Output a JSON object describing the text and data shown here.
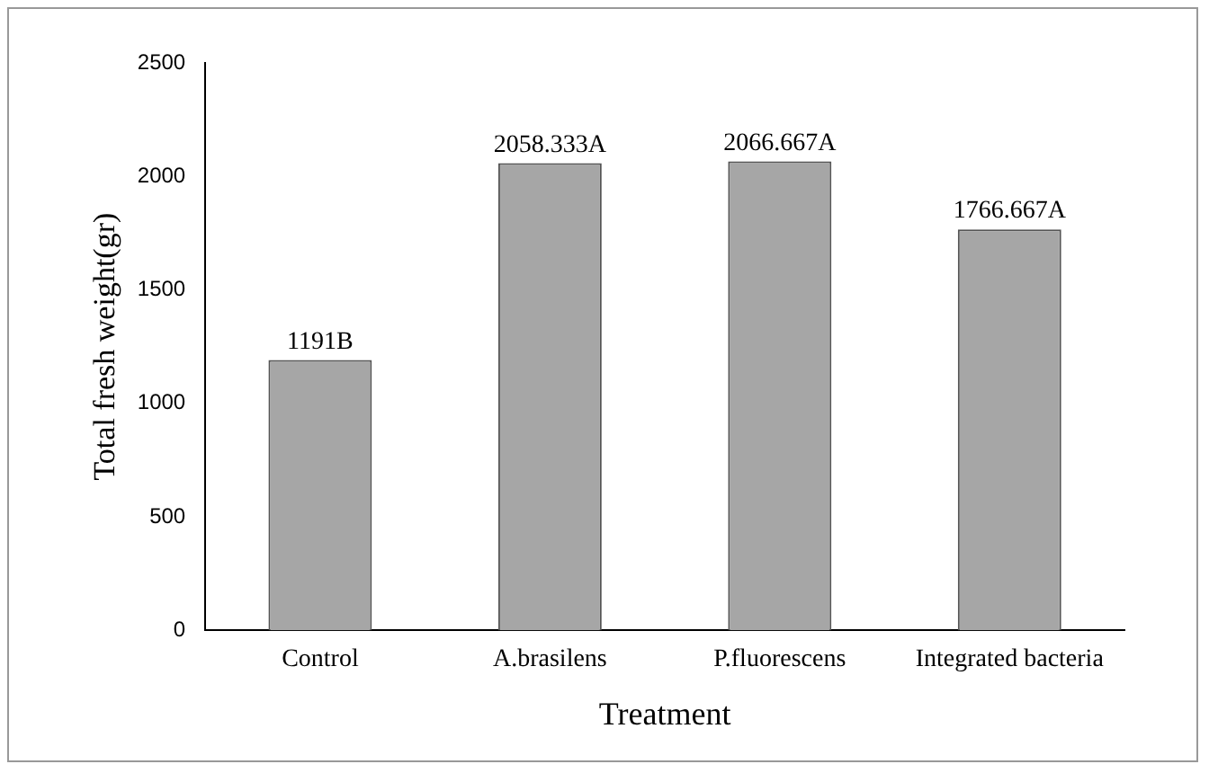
{
  "chart_data": {
    "type": "bar",
    "xlabel": "Treatment",
    "ylabel": "Total fresh weight(gr)",
    "categories": [
      "Control",
      "A.brasilens",
      "P.fluorescens",
      "Integrated bacteria"
    ],
    "values": [
      1191,
      2058.333,
      2066.667,
      1766.667
    ],
    "value_labels": [
      "1191B",
      "2058.333A",
      "2066.667A",
      "1766.667A"
    ],
    "color": "#a6a6a6",
    "ylim": [
      0,
      2500
    ],
    "yticks": [
      0,
      500,
      1000,
      1500,
      2000,
      2500
    ],
    "grid": false,
    "legend": false
  }
}
